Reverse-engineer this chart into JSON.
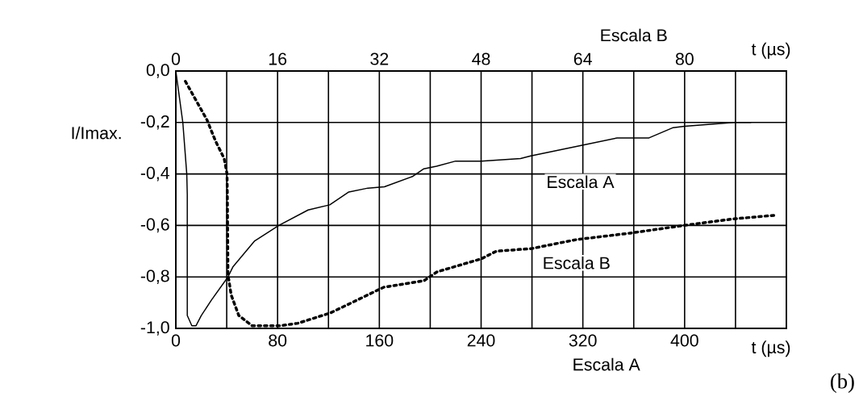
{
  "chart_data": {
    "type": "line",
    "xlabel": "Escala A",
    "x2label": "Escala B",
    "ylabel": "I/Imax.",
    "xlim": [
      0,
      480
    ],
    "xticks": [
      0,
      {
        "value": 40,
        "label": null
      },
      80,
      {
        "value": 120,
        "label": null
      },
      160,
      {
        "value": 200,
        "label": null
      },
      240,
      {
        "value": 280,
        "label": null
      },
      320,
      {
        "value": 360,
        "label": null
      },
      400,
      {
        "value": 440,
        "label": null
      }
    ],
    "x2lim": [
      0,
      96
    ],
    "x2ticks": [
      0,
      16,
      32,
      48,
      64,
      80
    ],
    "ylim": [
      -1,
      0
    ],
    "yticks": [
      {
        "value": -1,
        "label": "-1,0"
      },
      {
        "value": -0.8,
        "label": "-0,8"
      },
      {
        "value": -0.6,
        "label": "-0,6"
      },
      {
        "value": -0.4,
        "label": "-0,4"
      },
      {
        "value": -0.2,
        "label": "-0,2"
      },
      {
        "value": 0,
        "label": "0,0"
      }
    ],
    "grid": true,
    "marker": "none",
    "series": [
      {
        "name": "Escala A",
        "color": "#000000",
        "line_style": "solid",
        "x": [
          0,
          5.5,
          8.6,
          9,
          9,
          12.6,
          15.8,
          20,
          28,
          41,
          45,
          62,
          81,
          104,
          121,
          136,
          151,
          164,
          186,
          195,
          205,
          220,
          240,
          271,
          279,
          318,
          347,
          372,
          391,
          400,
          439,
          452
        ],
        "values": [
          0,
          -0.2,
          -0.4,
          -0.48,
          -0.95,
          -0.99,
          -0.99,
          -0.95,
          -0.89,
          -0.8,
          -0.76,
          -0.66,
          -0.6,
          -0.54,
          -0.52,
          -0.47,
          -0.455,
          -0.45,
          -0.41,
          -0.38,
          -0.37,
          -0.35,
          -0.35,
          -0.34,
          -0.33,
          -0.29,
          -0.26,
          -0.26,
          -0.22,
          -0.215,
          -0.2,
          -0.2
        ]
      },
      {
        "name": "Escala B",
        "color": "#000000",
        "line_style": "dotted",
        "axis": "x2",
        "x": [
          1.5,
          4.9,
          6.2,
          7.6,
          8.05,
          8.1,
          8.2,
          8.7,
          9.9,
          12,
          16.3,
          19.2,
          24.3,
          28.5,
          32.7,
          39,
          41.1,
          48,
          50.4,
          55.9,
          63,
          71.4,
          79.9,
          87.5,
          94.4
        ],
        "values": [
          -0.04,
          -0.19,
          -0.27,
          -0.34,
          -0.4,
          -0.48,
          -0.79,
          -0.87,
          -0.95,
          -0.99,
          -0.99,
          -0.98,
          -0.94,
          -0.89,
          -0.84,
          -0.815,
          -0.78,
          -0.73,
          -0.7,
          -0.69,
          -0.655,
          -0.63,
          -0.6,
          -0.575,
          -0.56
        ]
      }
    ],
    "annotations": [
      "t   (µs)",
      "t   (µs)",
      "(b)"
    ]
  }
}
